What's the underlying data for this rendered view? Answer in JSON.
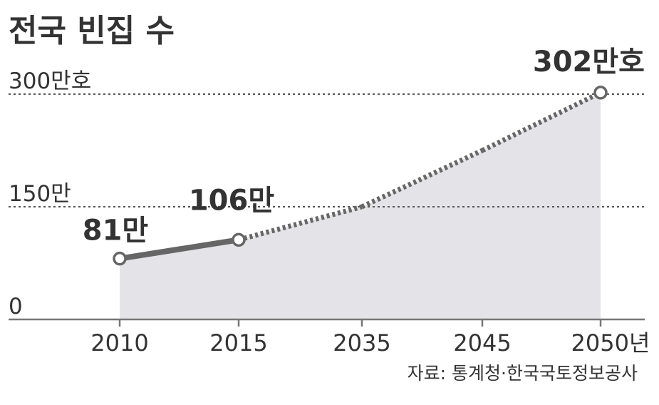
{
  "chart_data": {
    "type": "line",
    "title": "전국 빈집 수",
    "categories": [
      "2010",
      "2015",
      "2035",
      "2045",
      "2050"
    ],
    "x_tick_labels": [
      "2010",
      "2015",
      "2035",
      "2045",
      "2050년"
    ],
    "series": [
      {
        "values": [
          81,
          106,
          150,
          225,
          302
        ],
        "style_by_segment": [
          "solid",
          "dotted",
          "dotted",
          "dotted"
        ]
      }
    ],
    "marked_points": [
      0,
      1,
      4
    ],
    "data_labels": [
      "81만",
      "106만",
      "",
      "",
      "302만호"
    ],
    "y_ticks": [
      {
        "value": 0,
        "label": "0"
      },
      {
        "value": 150,
        "label": "150만"
      },
      {
        "value": 300,
        "label": "300만호"
      }
    ],
    "ylim": [
      0,
      310
    ],
    "gridlines": [
      150,
      300
    ],
    "source": "자료: 통계청·한국국토정보공사",
    "colors": {
      "area": "#e4e4e8",
      "line": "#666666",
      "text": "#333333",
      "grid": "#555555",
      "axis": "#777777",
      "marker_fill": "#ffffff"
    }
  }
}
